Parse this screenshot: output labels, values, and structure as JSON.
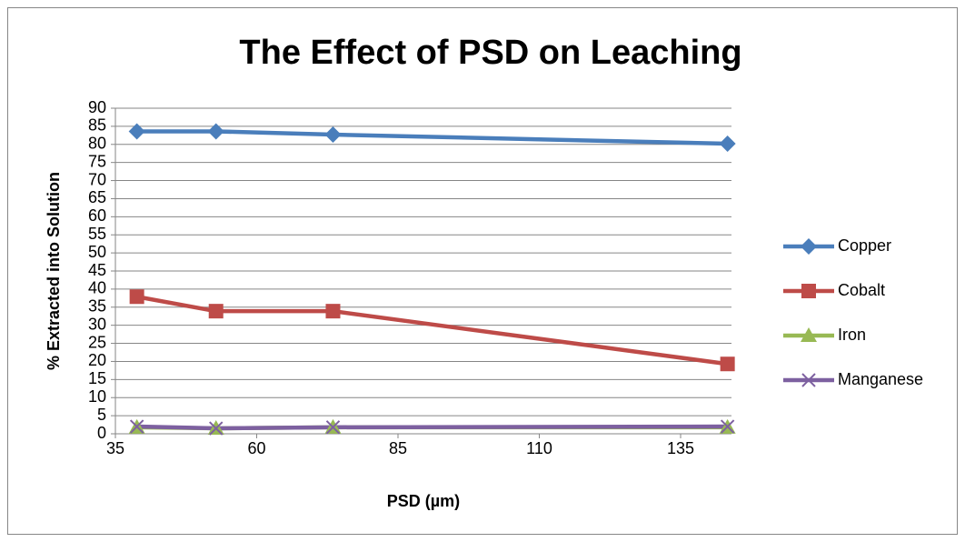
{
  "chart_data": {
    "type": "line",
    "title": "The Effect of PSD on Leaching",
    "xlabel": "PSD (µm)",
    "ylabel": "% Extracted into Solution",
    "x": [
      38.8,
      52.8,
      73.5,
      143.3
    ],
    "xlim": [
      35,
      144
    ],
    "xticks": [
      35,
      60,
      85,
      110,
      135
    ],
    "ylim": [
      0,
      90
    ],
    "yticks": [
      0,
      5,
      10,
      15,
      20,
      25,
      30,
      35,
      40,
      45,
      50,
      55,
      60,
      65,
      70,
      75,
      80,
      85,
      90
    ],
    "grid": true,
    "legend": "right",
    "series": [
      {
        "name": "Copper",
        "color": "#4a7ebb",
        "marker": "diamond",
        "values": [
          83.6,
          83.6,
          82.7,
          80.2
        ]
      },
      {
        "name": "Cobalt",
        "color": "#be4b48",
        "marker": "square",
        "values": [
          37.9,
          33.9,
          33.9,
          19.3
        ]
      },
      {
        "name": "Iron",
        "color": "#98b954",
        "marker": "triangle",
        "values": [
          1.8,
          1.5,
          1.8,
          1.8
        ]
      },
      {
        "name": "Manganese",
        "color": "#7d60a0",
        "marker": "x",
        "values": [
          2.0,
          1.5,
          1.8,
          2.0
        ]
      }
    ]
  }
}
